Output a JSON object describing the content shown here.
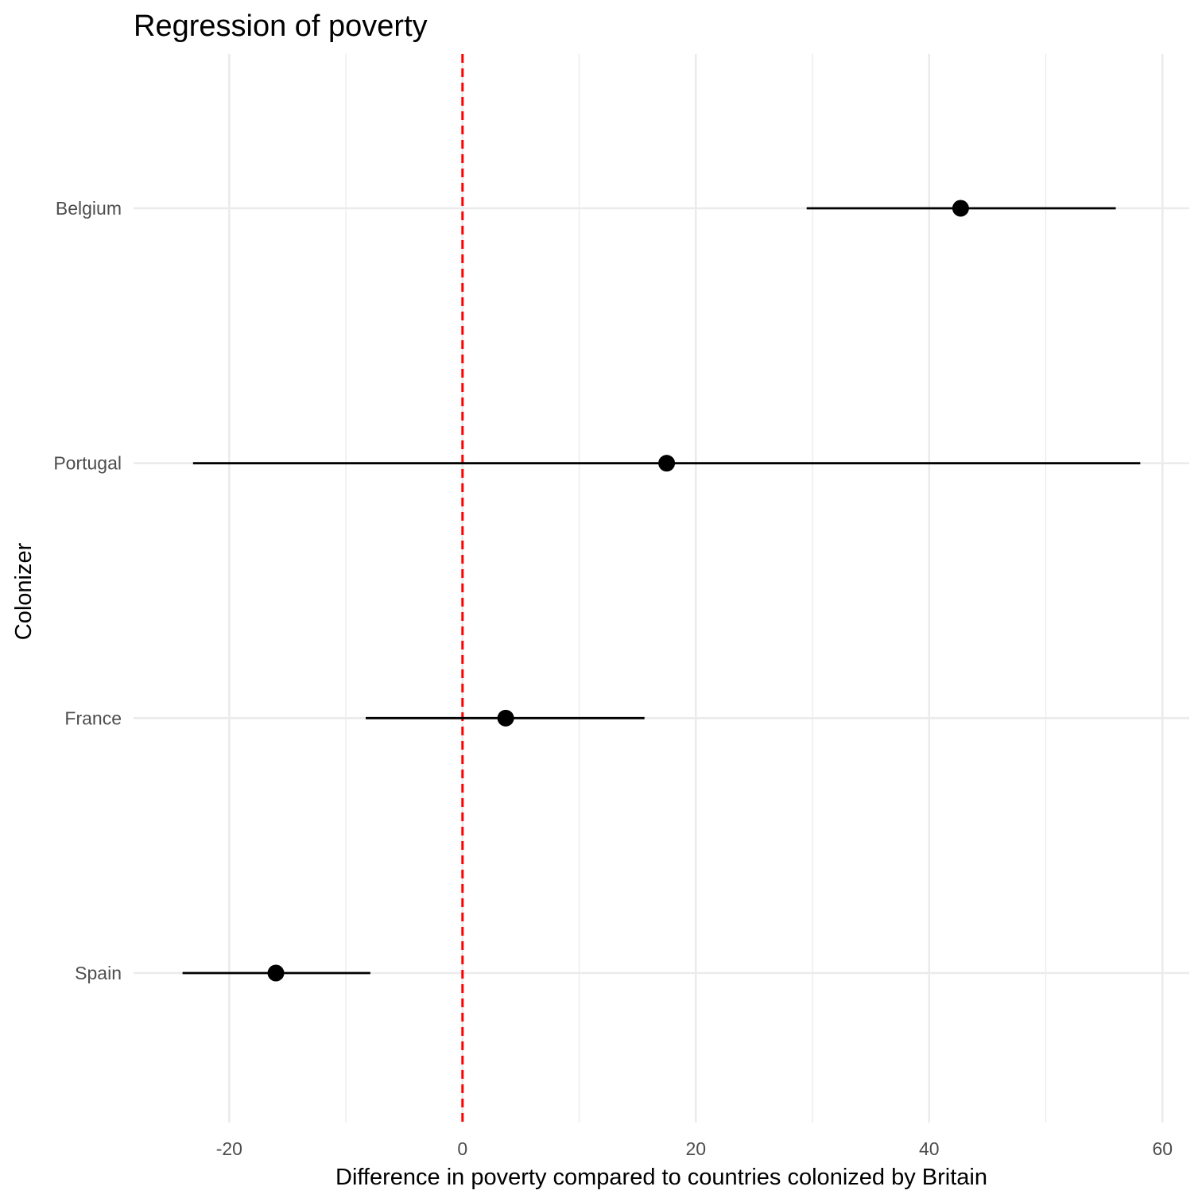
{
  "chart_data": {
    "type": "scatter",
    "subtype": "coefficient-plot-with-intervals",
    "title": "Regression of poverty",
    "xlabel": "Difference in poverty compared to countries colonized by Britain",
    "ylabel": "Colonizer",
    "xlim": [
      -28.2,
      62.3
    ],
    "x_ticks": [
      -20,
      0,
      20,
      40,
      60
    ],
    "x_tick_labels": [
      "-20",
      "0",
      "20",
      "40",
      "60"
    ],
    "categories": [
      "Spain",
      "France",
      "Portugal",
      "Belgium"
    ],
    "series": [
      {
        "estimates": [
          -16.0,
          3.7,
          17.5,
          42.7
        ],
        "lower": [
          -24.0,
          -8.3,
          -23.1,
          29.5
        ],
        "upper": [
          -7.9,
          15.6,
          58.1,
          56.0
        ]
      }
    ],
    "reference_line": {
      "x": 0,
      "style": "dashed",
      "color": "#ff0000"
    },
    "point_color": "#000000",
    "grid": true,
    "legend": "none"
  }
}
